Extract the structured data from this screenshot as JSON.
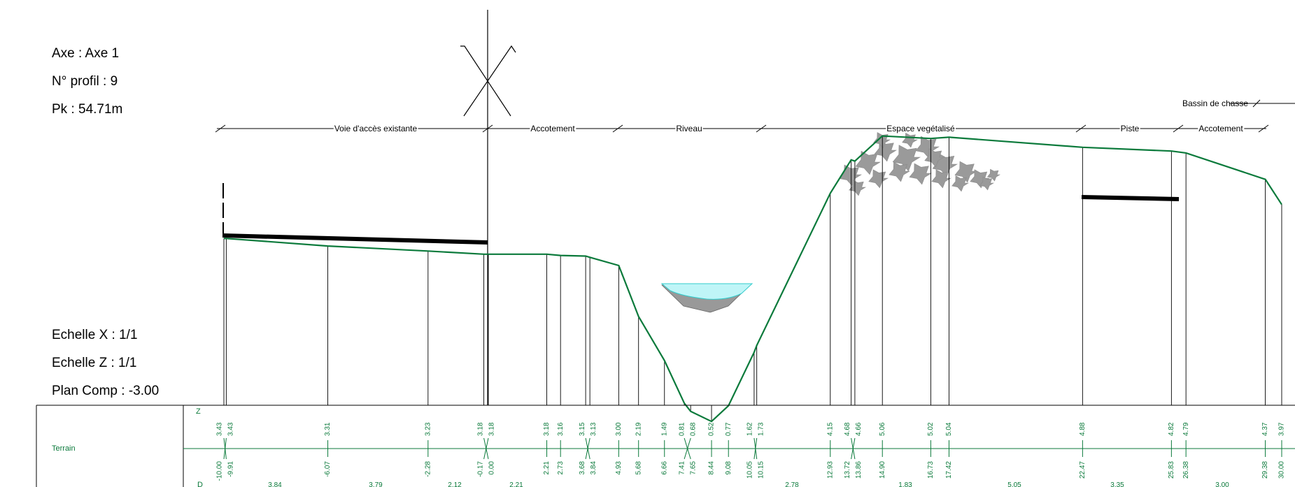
{
  "info": {
    "axe": "Axe : Axe 1",
    "profil": "N° profil : 9",
    "pk": "Pk : 54.71m",
    "echelle_x": "Echelle X : 1/1",
    "echelle_z": "Echelle Z : 1/1",
    "plan_comp": "Plan Comp : -3.00"
  },
  "zones": [
    {
      "label": "Voie d'accès existante"
    },
    {
      "label": "Accotement"
    },
    {
      "label": "Riveau"
    },
    {
      "label": "Espace vegétalisé"
    },
    {
      "label": "Piste"
    },
    {
      "label": "Accotement"
    }
  ],
  "bassin_label": "Bassin de chasse",
  "table": {
    "row_label": "Terrain",
    "z_header": "Z",
    "d_header": "D"
  },
  "chart_data": {
    "type": "table",
    "points": [
      {
        "d": "-10.00",
        "z": "3.43"
      },
      {
        "d": "-9.91",
        "z": "3.43"
      },
      {
        "d": "-6.07",
        "z": "3.31"
      },
      {
        "d": "-2.28",
        "z": "3.23"
      },
      {
        "d": "-0.17",
        "z": "3.18"
      },
      {
        "d": "0.00",
        "z": "3.18"
      },
      {
        "d": "2.21",
        "z": "3.18"
      },
      {
        "d": "2.73",
        "z": "3.16"
      },
      {
        "d": "3.68",
        "z": "3.15"
      },
      {
        "d": "3.84",
        "z": "3.13"
      },
      {
        "d": "4.93",
        "z": "3.00"
      },
      {
        "d": "5.68",
        "z": "2.19"
      },
      {
        "d": "6.66",
        "z": "1.49"
      },
      {
        "d": "7.41",
        "z": "0.81"
      },
      {
        "d": "7.65",
        "z": "0.68"
      },
      {
        "d": "8.44",
        "z": "0.52"
      },
      {
        "d": "9.08",
        "z": "0.77"
      },
      {
        "d": "10.05",
        "z": "1.62"
      },
      {
        "d": "10.15",
        "z": "1.73"
      },
      {
        "d": "12.93",
        "z": "4.15"
      },
      {
        "d": "13.72",
        "z": "4.68"
      },
      {
        "d": "13.86",
        "z": "4.66"
      },
      {
        "d": "14.90",
        "z": "5.06"
      },
      {
        "d": "16.73",
        "z": "5.02"
      },
      {
        "d": "17.42",
        "z": "5.04"
      },
      {
        "d": "22.47",
        "z": "4.88"
      },
      {
        "d": "25.83",
        "z": "4.82"
      },
      {
        "d": "26.38",
        "z": "4.79"
      },
      {
        "d": "29.38",
        "z": "4.37"
      },
      {
        "d": "30.00",
        "z": "3.97"
      }
    ],
    "partial_distances": [
      "3.84",
      "3.79",
      "2.12",
      "2.21",
      "2.78",
      "1.83",
      "5.05",
      "3.35",
      "3.00"
    ]
  }
}
